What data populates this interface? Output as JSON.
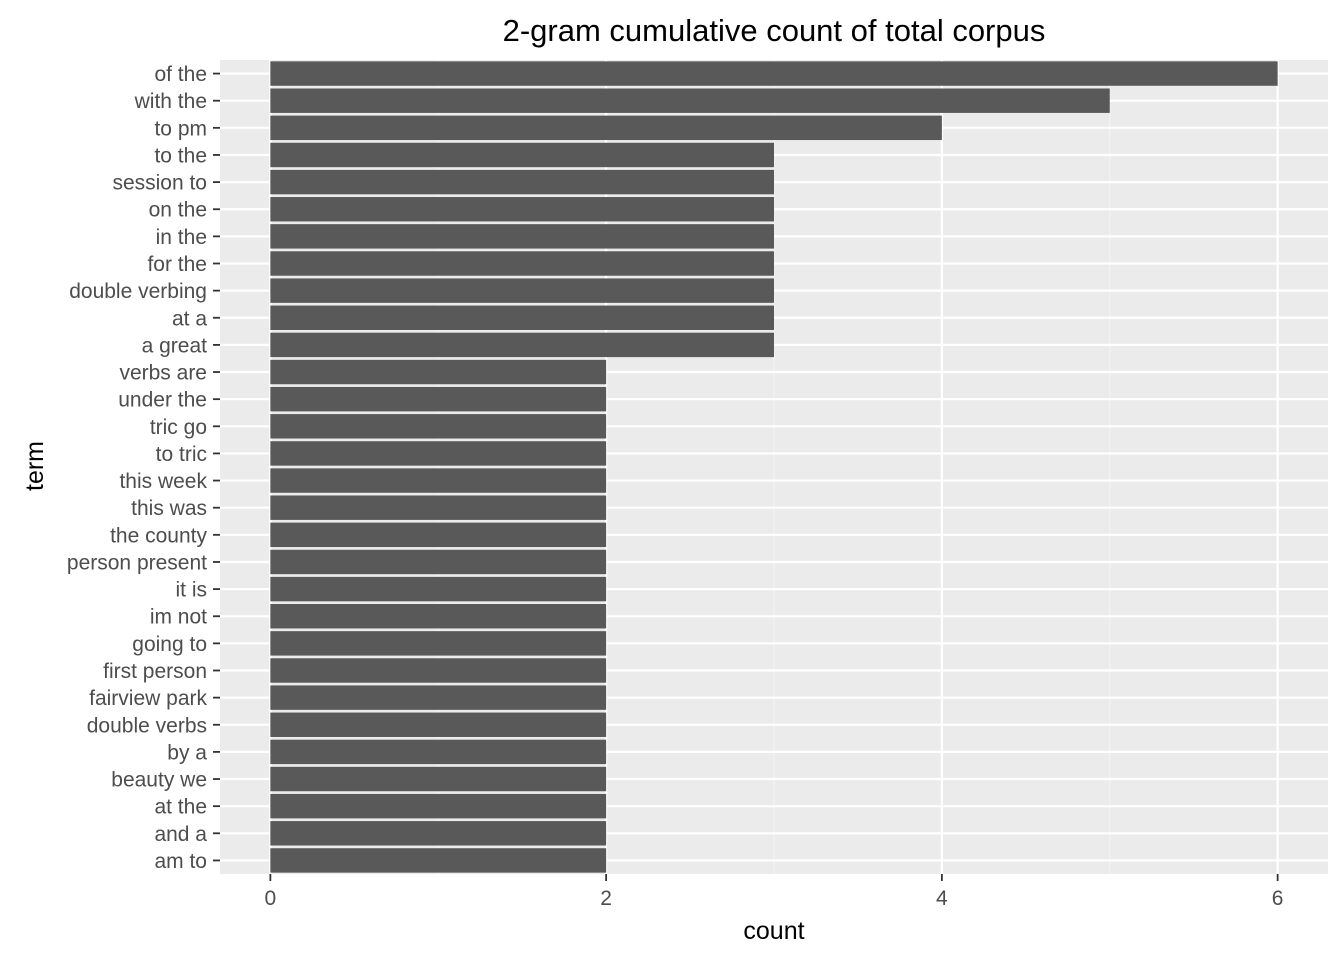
{
  "chart_data": {
    "type": "bar",
    "orientation": "horizontal",
    "title": "2-gram cumulative count of total corpus",
    "xlabel": "count",
    "ylabel": "term",
    "categories": [
      "of the",
      "with the",
      "to pm",
      "to the",
      "session to",
      "on the",
      "in the",
      "for the",
      "double verbing",
      "at a",
      "a great",
      "verbs are",
      "under the",
      "tric go",
      "to tric",
      "this week",
      "this was",
      "the county",
      "person present",
      "it is",
      "im not",
      "going to",
      "first person",
      "fairview park",
      "double verbs",
      "by a",
      "beauty we",
      "at the",
      "and a",
      "am to"
    ],
    "values": [
      6,
      5,
      4,
      3,
      3,
      3,
      3,
      3,
      3,
      3,
      3,
      2,
      2,
      2,
      2,
      2,
      2,
      2,
      2,
      2,
      2,
      2,
      2,
      2,
      2,
      2,
      2,
      2,
      2,
      2
    ],
    "xlim": [
      -0.3,
      6.3
    ],
    "xticks": [
      0,
      2,
      4,
      6
    ],
    "grid": true,
    "colors": {
      "bar": "#595959",
      "panel": "#ebebeb",
      "grid_major": "#ffffff",
      "grid_minor": "#f4f4f4",
      "tick": "#333333"
    }
  }
}
